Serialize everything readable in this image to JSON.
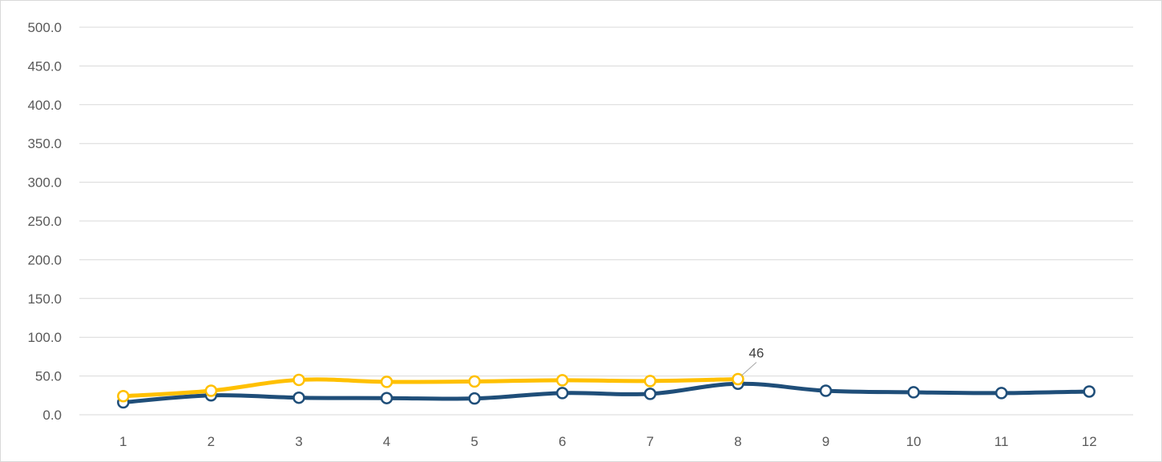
{
  "chart_data": {
    "type": "line",
    "categories": [
      "1",
      "2",
      "3",
      "4",
      "5",
      "6",
      "7",
      "8",
      "9",
      "10",
      "11",
      "12"
    ],
    "series": [
      {
        "color": "#1f4e79",
        "values": [
          16,
          25,
          22,
          21.5,
          21,
          28,
          27,
          40,
          31,
          29,
          28,
          30
        ]
      },
      {
        "color": "#ffc000",
        "values": [
          24,
          31,
          45,
          42.5,
          43,
          44.5,
          43.5,
          46,
          null,
          null,
          null,
          null
        ]
      }
    ],
    "y_ticks": [
      "0.0",
      "50.0",
      "100.0",
      "150.0",
      "200.0",
      "250.0",
      "300.0",
      "350.0",
      "400.0",
      "450.0",
      "500.0"
    ],
    "ylim": [
      0,
      500
    ],
    "grid": "horizontal",
    "legend": "none",
    "annotations": [
      {
        "series": 1,
        "index": 7,
        "text": "46"
      }
    ],
    "gridline_color": "#d9d9d9",
    "tick_label_color": "#595959"
  }
}
